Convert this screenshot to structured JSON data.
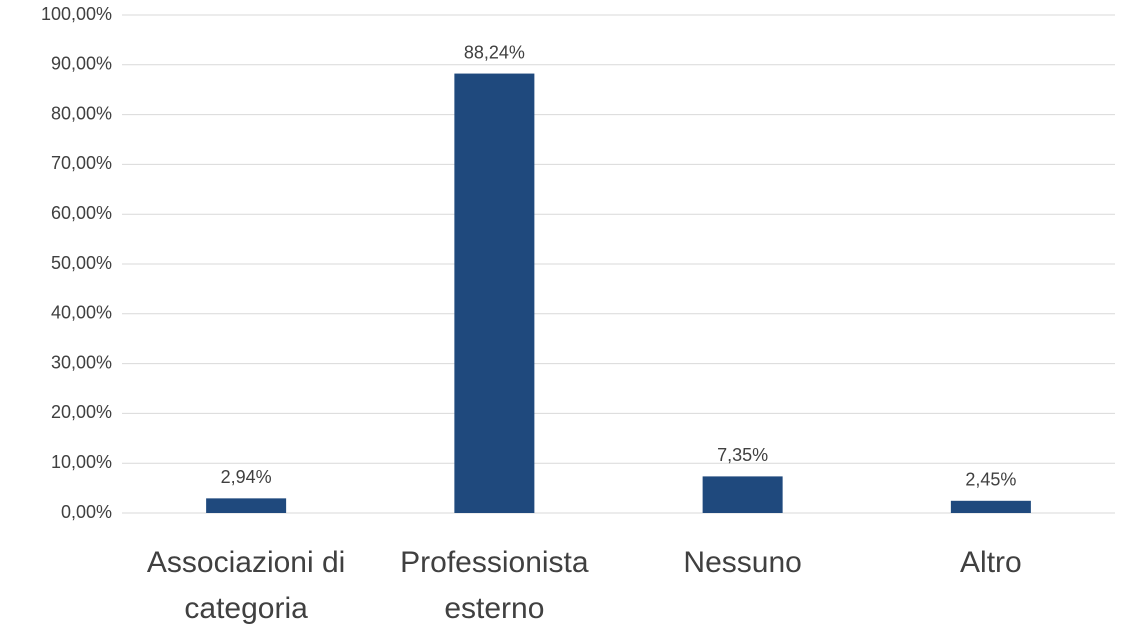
{
  "chart_data": {
    "type": "bar",
    "categories": [
      "Associazioni di categoria",
      "Professionista esterno",
      "Nessuno",
      "Altro"
    ],
    "values": [
      2.94,
      88.24,
      7.35,
      2.45
    ],
    "value_labels": [
      "2,94%",
      "88,24%",
      "7,35%",
      "2,45%"
    ],
    "color": "#1f497d",
    "ylim": [
      0,
      100
    ],
    "yticks": [
      {
        "value": 0,
        "label": "0,00%"
      },
      {
        "value": 10,
        "label": "10,00%"
      },
      {
        "value": 20,
        "label": "20,00%"
      },
      {
        "value": 30,
        "label": "30,00%"
      },
      {
        "value": 40,
        "label": "40,00%"
      },
      {
        "value": 50,
        "label": "50,00%"
      },
      {
        "value": 60,
        "label": "60,00%"
      },
      {
        "value": 70,
        "label": "70,00%"
      },
      {
        "value": 80,
        "label": "80,00%"
      },
      {
        "value": 90,
        "label": "90,00%"
      },
      {
        "value": 100,
        "label": "100,00%"
      }
    ],
    "grid": true
  }
}
